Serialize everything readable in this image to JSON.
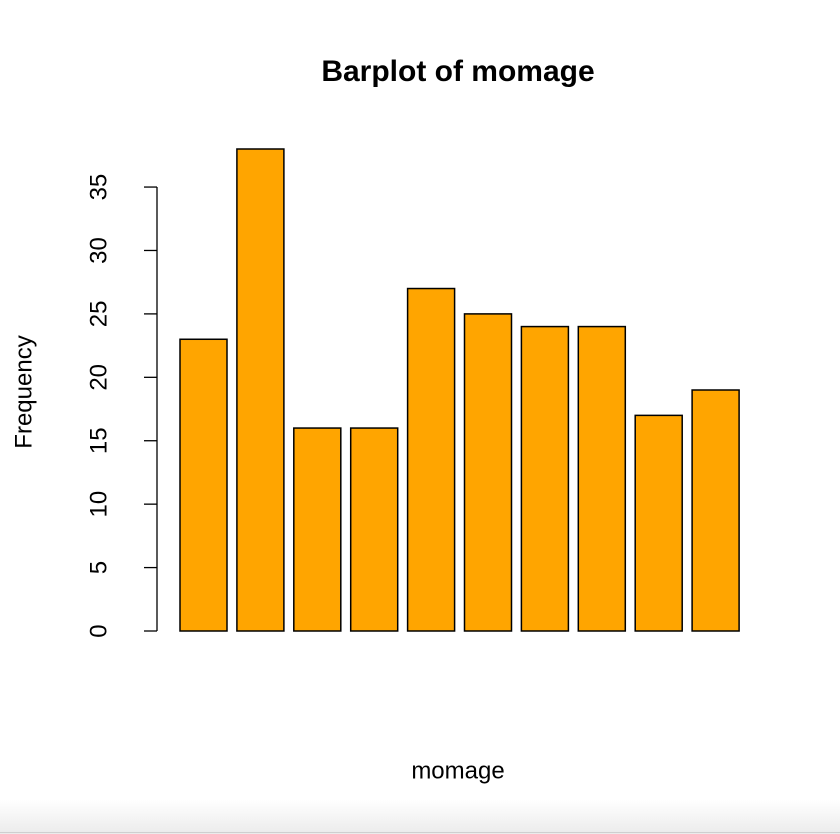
{
  "chart_data": {
    "type": "bar",
    "title": "Barplot of momage",
    "x_label": "momage",
    "y_label": "Frequency",
    "categories": [
      null,
      null,
      null,
      null,
      null,
      null,
      null,
      null,
      null,
      null
    ],
    "values": [
      23,
      38,
      16,
      16,
      27,
      25,
      24,
      24,
      17,
      19
    ],
    "color": "#ffa500",
    "ylim": [
      0,
      38
    ],
    "yticks": [
      0,
      5,
      10,
      15,
      20,
      25,
      30,
      35
    ],
    "grid": false
  }
}
